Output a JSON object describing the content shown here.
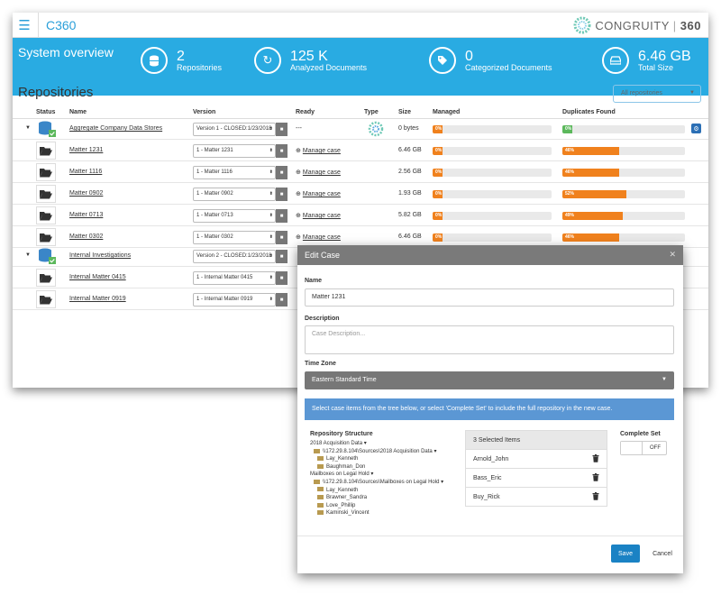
{
  "app": {
    "brand": "C360",
    "logo_text": "CONGRUITY",
    "logo_num": "360"
  },
  "banner": {
    "title": "System overview",
    "stats": [
      {
        "num": "2",
        "label": "Repositories",
        "icon": "database-icon"
      },
      {
        "num": "125 K",
        "label": "Analyzed Documents",
        "icon": "refresh-icon"
      },
      {
        "num": "0",
        "label": "Categorized Documents",
        "icon": "tag-icon"
      },
      {
        "num": "6.46 GB",
        "label": "Total Size",
        "icon": "drive-icon"
      }
    ]
  },
  "repos": {
    "title": "Repositories",
    "filter": "All repositories",
    "columns": {
      "status": "Status",
      "name": "Name",
      "version": "Version",
      "ready": "Ready",
      "type": "Type",
      "size": "Size",
      "managed": "Managed",
      "duplicates": "Duplicates Found"
    },
    "manage_label": "Manage case",
    "rows": [
      {
        "name": "Aggregate Company Data Stores",
        "version": "Version 1 - CLOSED:1/23/2018",
        "ready": "---",
        "size": "0 bytes",
        "managed": "0%",
        "managed_pct": 0.08,
        "dup": "0%",
        "dup_pct": 0.08,
        "dup_color": "#5cb85c"
      },
      {
        "name": "Matter 1231",
        "version": "1 - Matter 1231",
        "size": "6.46 GB",
        "managed": "0%",
        "managed_pct": 0.08,
        "dup": "46%",
        "dup_pct": 0.46
      },
      {
        "name": "Matter 1116",
        "version": "1 - Matter 1116",
        "size": "2.56 GB",
        "managed": "0%",
        "managed_pct": 0.08,
        "dup": "46%",
        "dup_pct": 0.46
      },
      {
        "name": "Matter 0902",
        "version": "1 - Matter 0902",
        "size": "1.93 GB",
        "managed": "0%",
        "managed_pct": 0.08,
        "dup": "52%",
        "dup_pct": 0.52
      },
      {
        "name": "Matter 0713",
        "version": "1 - Matter 0713",
        "size": "5.82 GB",
        "managed": "0%",
        "managed_pct": 0.08,
        "dup": "49%",
        "dup_pct": 0.49
      },
      {
        "name": "Matter 0302",
        "version": "1 - Matter 0302",
        "size": "6.46 GB",
        "managed": "0%",
        "managed_pct": 0.08,
        "dup": "46%",
        "dup_pct": 0.46
      },
      {
        "name": "Internal Investigations",
        "version": "Version 2 - CLOSED:1/23/2018"
      },
      {
        "name": "Internal Matter 0415",
        "version": "1 - Internal Matter 0415"
      },
      {
        "name": "Internal Matter 0919",
        "version": "1 - Internal Matter 0919"
      }
    ]
  },
  "modal": {
    "title": "Edit Case",
    "name_label": "Name",
    "name_value": "Matter 1231",
    "desc_label": "Description",
    "desc_placeholder": "Case Description...",
    "tz_label": "Time Zone",
    "tz_value": "Eastern Standard Time",
    "info": "Select case items from the tree below, or select 'Complete Set' to include the full repository in the new case.",
    "tree_title": "Repository Structure",
    "tree": [
      {
        "text": "2018 Acquisition Data",
        "level": 0,
        "caret": true
      },
      {
        "text": "\\\\172.29.8.104\\Sources\\2018 Acquisition Data",
        "level": 1,
        "caret": true,
        "folder": true
      },
      {
        "text": "Lay_Kenneth",
        "level": 2,
        "folder": true
      },
      {
        "text": "Baughman_Don",
        "level": 2,
        "folder": true
      },
      {
        "text": "Mailboxes on Legal Hold",
        "level": 0,
        "caret": true
      },
      {
        "text": "\\\\172.29.8.104\\Sources\\Mailboxes on Legal Hold",
        "level": 1,
        "caret": true,
        "folder": true
      },
      {
        "text": "Lay_Kenneth",
        "level": 2,
        "folder": true
      },
      {
        "text": "Brawner_Sandra",
        "level": 2,
        "folder": true
      },
      {
        "text": "Love_Phillip",
        "level": 2,
        "folder": true
      },
      {
        "text": "Kaminski_Vincent",
        "level": 2,
        "folder": true
      }
    ],
    "selected_header": "3 Selected Items",
    "selected": [
      "Arnold_John",
      "Bass_Eric",
      "Buy_Rick"
    ],
    "complete_label": "Complete Set",
    "toggle_text": "OFF",
    "save": "Save",
    "cancel": "Cancel"
  }
}
